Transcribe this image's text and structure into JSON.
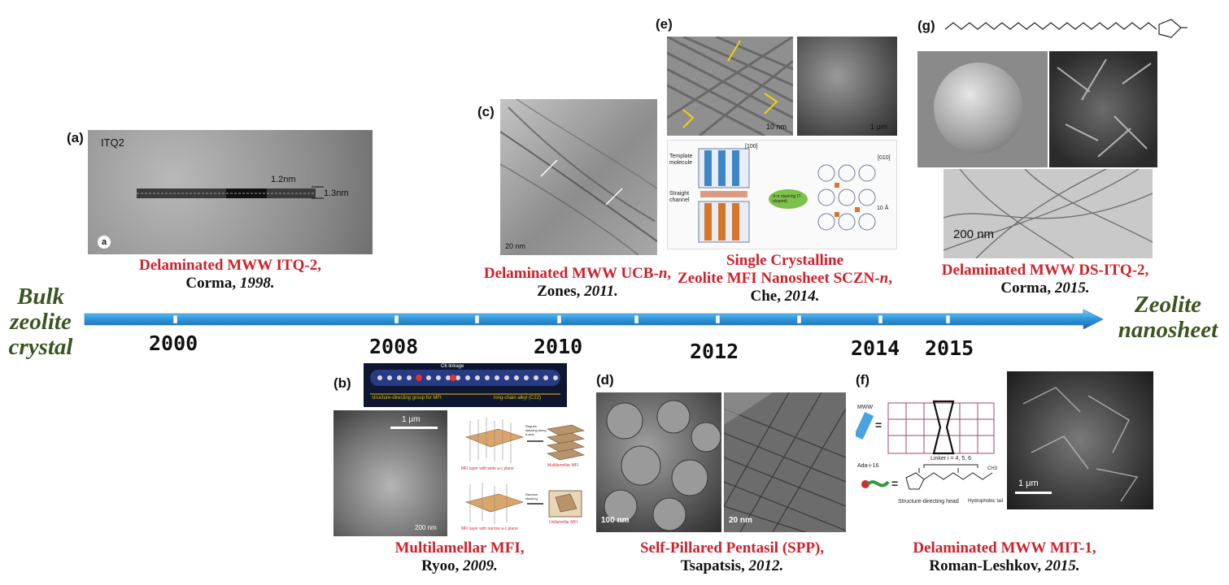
{
  "side_labels": {
    "left": [
      "Bulk",
      "zeolite",
      "crystal"
    ],
    "right": [
      "Zeolite",
      "nanosheet"
    ]
  },
  "timeline": {
    "years": [
      "2000",
      "2008",
      "2010",
      "2012",
      "2014",
      "2015"
    ]
  },
  "panels": {
    "a": {
      "label": "(a)",
      "image_text": {
        "title": "ITQ2",
        "dim1": "1.2nm",
        "dim2": "1.3nm",
        "badge": "a"
      },
      "caption_title": "Delaminated MWW ITQ-2,",
      "caption_author": "Corma, ",
      "caption_year": "1998."
    },
    "b": {
      "label": "(b)",
      "image_text": {
        "scale1": "1 μm",
        "scale2": "200 nm",
        "bar_left": "structure-directing group for MFI",
        "bar_right": "long-chain alkyl (C22)",
        "bar_top": "C6 linkage",
        "regular": "Regular stacking along b-axis",
        "random": "Random stacking",
        "multilamellar": "Multilamellar MFI",
        "unilamellar": "Unilamellar MFI",
        "mfi_layer1": "MFI layer with wide a-c plane",
        "mfi_layer2": "MFI layer with narrow a-c plane"
      },
      "caption_title": "Multilamellar MFI,",
      "caption_author": "Ryoo, ",
      "caption_year": "2009."
    },
    "c": {
      "label": "(c)",
      "image_text": {
        "scale": "20 nm"
      },
      "caption_title_plain": "Delaminated MWW UCB-",
      "caption_title_italic": "n",
      "caption_title_end": ",",
      "caption_author": "Zones, ",
      "caption_year": "2011."
    },
    "d": {
      "label": "(d)",
      "image_text": {
        "scale1": "100 nm",
        "scale2": "20 nm"
      },
      "caption_title": "Self-Pillared Pentasil (SPP),",
      "caption_author": "Tsapatsis, ",
      "caption_year": "2012."
    },
    "e": {
      "label": "(e)",
      "image_text": {
        "scale1": "10 nm",
        "scale2": "1 μm",
        "template": "Template molecule",
        "straight": "Straight channel",
        "stacking": "π-π stacking (T-shaped)",
        "axis1": "[100]",
        "axis2": "[010]",
        "dist": "10 Å"
      },
      "caption_line1": "Single Crystalline",
      "caption_line2_plain": "Zeolite MFI Nanosheet SCZN-",
      "caption_line2_italic": "n",
      "caption_line2_end": ",",
      "caption_author": "Che, ",
      "caption_year": "2014."
    },
    "f": {
      "label": "(f)",
      "image_text": {
        "mww": "MWW",
        "ada": "Ada-i-16",
        "linker": "Linker i = 4, 5, 6",
        "head": "Structure-directing head",
        "tail": "Hydrophobic tail",
        "scale": "1 μm",
        "ch3": "CH3"
      },
      "caption_title": "Delaminated MWW MIT-1,",
      "caption_author": "Roman-Leshkov, ",
      "caption_year": "2015."
    },
    "g": {
      "label": "(g)",
      "image_text": {
        "scale": "200 nm"
      },
      "caption_title": "Delaminated MWW DS-ITQ-2,",
      "caption_author": "Corma, ",
      "caption_year": "2015."
    }
  },
  "colors": {
    "caption_red": "#d1202a",
    "side_green": "#3b5520",
    "arrow_blue": "#1f7fc4"
  }
}
